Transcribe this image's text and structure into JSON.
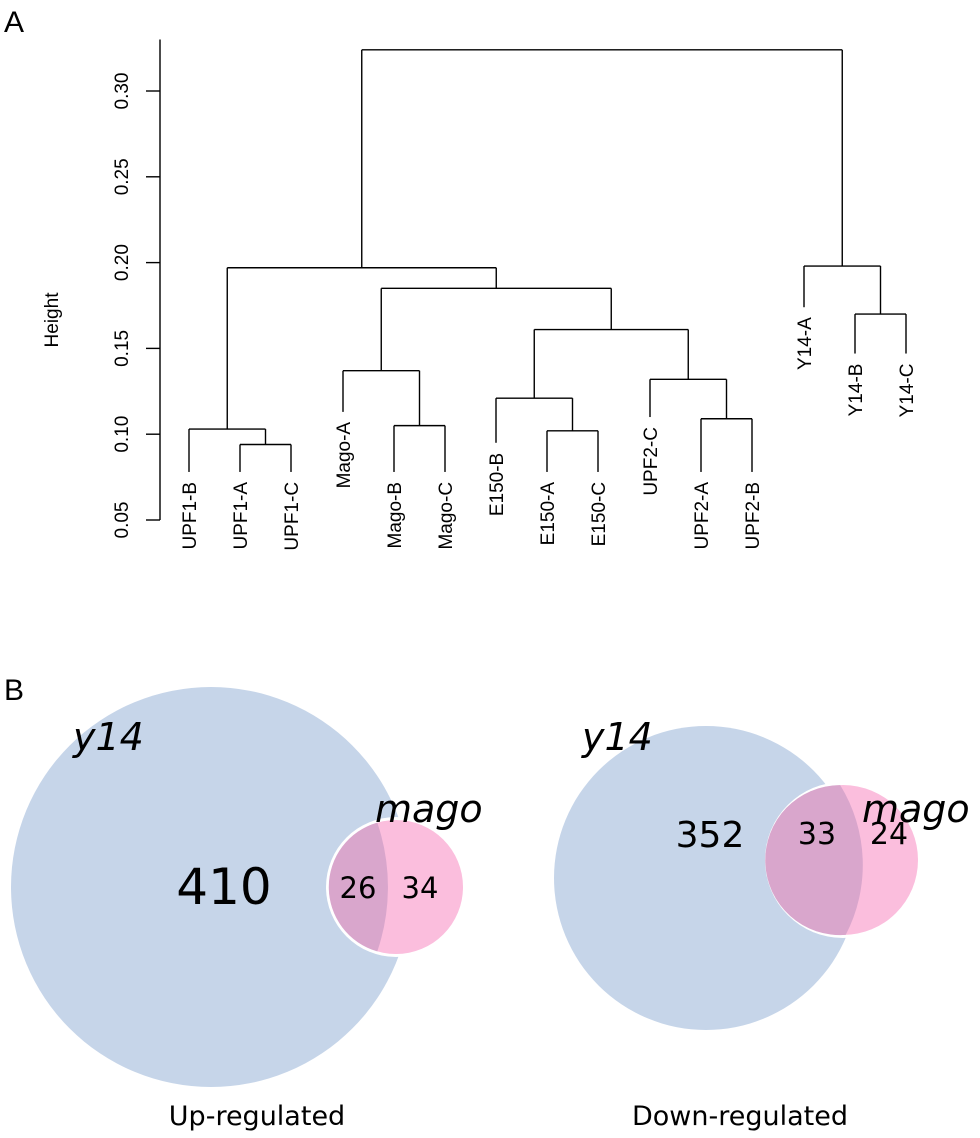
{
  "panels": {
    "a": "A",
    "b": "B"
  },
  "chart_data": [
    {
      "type": "dendrogram",
      "ylabel": "Height",
      "ylim": [
        0.05,
        0.33
      ],
      "yticks": [
        0.05,
        0.1,
        0.15,
        0.2,
        0.25,
        0.3
      ],
      "ytick_labels": [
        "0.05",
        "0.10",
        "0.15",
        "0.20",
        "0.25",
        "0.30"
      ],
      "leaves": [
        {
          "label": "UPF1-B",
          "height": 0.078
        },
        {
          "label": "UPF1-A",
          "height": 0.078
        },
        {
          "label": "UPF1-C",
          "height": 0.078
        },
        {
          "label": "Mago-A",
          "height": 0.113
        },
        {
          "label": "Mago-B",
          "height": 0.078
        },
        {
          "label": "Mago-C",
          "height": 0.078
        },
        {
          "label": "E150-B",
          "height": 0.095
        },
        {
          "label": "E150-A",
          "height": 0.078
        },
        {
          "label": "E150-C",
          "height": 0.078
        },
        {
          "label": "UPF2-C",
          "height": 0.11
        },
        {
          "label": "UPF2-A",
          "height": 0.078
        },
        {
          "label": "UPF2-B",
          "height": 0.078
        },
        {
          "label": "Y14-A",
          "height": 0.174
        },
        {
          "label": "Y14-B",
          "height": 0.147
        },
        {
          "label": "Y14-C",
          "height": 0.147
        }
      ],
      "merges": [
        {
          "id": "m1",
          "children": [
            "UPF1-A",
            "UPF1-C"
          ],
          "height": 0.094
        },
        {
          "id": "m2",
          "children": [
            "UPF1-B",
            "m1"
          ],
          "height": 0.103
        },
        {
          "id": "m3",
          "children": [
            "Mago-B",
            "Mago-C"
          ],
          "height": 0.105
        },
        {
          "id": "m4",
          "children": [
            "Mago-A",
            "m3"
          ],
          "height": 0.137
        },
        {
          "id": "m5",
          "children": [
            "E150-A",
            "E150-C"
          ],
          "height": 0.102
        },
        {
          "id": "m6",
          "children": [
            "E150-B",
            "m5"
          ],
          "height": 0.121
        },
        {
          "id": "m7",
          "children": [
            "UPF2-A",
            "UPF2-B"
          ],
          "height": 0.109
        },
        {
          "id": "m8",
          "children": [
            "UPF2-C",
            "m7"
          ],
          "height": 0.132
        },
        {
          "id": "m9",
          "children": [
            "m6",
            "m8"
          ],
          "height": 0.161
        },
        {
          "id": "m10",
          "children": [
            "m4",
            "m9"
          ],
          "height": 0.185
        },
        {
          "id": "m11",
          "children": [
            "m2",
            "m10"
          ],
          "height": 0.197
        },
        {
          "id": "m12",
          "children": [
            "Y14-B",
            "Y14-C"
          ],
          "height": 0.17
        },
        {
          "id": "m13",
          "children": [
            "Y14-A",
            "m12"
          ],
          "height": 0.198
        },
        {
          "id": "m14",
          "children": [
            "m11",
            "m13"
          ],
          "height": 0.324
        }
      ]
    },
    {
      "type": "venn",
      "caption": "Up-regulated",
      "sets": [
        {
          "name": "y14",
          "only": 410,
          "color": "#c6d5e9"
        },
        {
          "name": "mago",
          "only": 34,
          "color": "#fbbedd"
        }
      ],
      "overlap": 26,
      "overlap_color": "#d9a6cc"
    },
    {
      "type": "venn",
      "caption": "Down-regulated",
      "sets": [
        {
          "name": "y14",
          "only": 352,
          "color": "#c6d5e9"
        },
        {
          "name": "mago",
          "only": 24,
          "color": "#fbbedd"
        }
      ],
      "overlap": 33,
      "overlap_color": "#d9a6cc"
    }
  ]
}
